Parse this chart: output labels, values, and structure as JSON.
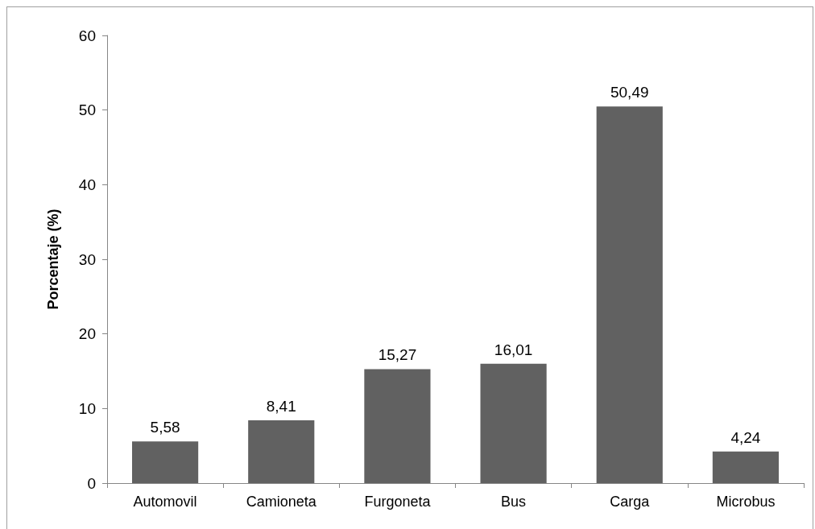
{
  "chart_data": {
    "type": "bar",
    "ylabel": "Porcentaje (%)",
    "categories": [
      "Automovil",
      "Camioneta",
      "Furgoneta",
      "Bus",
      "Carga",
      "Microbus"
    ],
    "values": [
      5.58,
      8.41,
      15.27,
      16.01,
      50.49,
      4.24
    ],
    "value_labels": [
      "5,58",
      "8,41",
      "15,27",
      "16,01",
      "50,49",
      "4,24"
    ],
    "color": "#616161",
    "ylim": [
      0,
      60
    ],
    "yticks": [
      0,
      10,
      20,
      30,
      40,
      50,
      60
    ],
    "grid": false
  }
}
